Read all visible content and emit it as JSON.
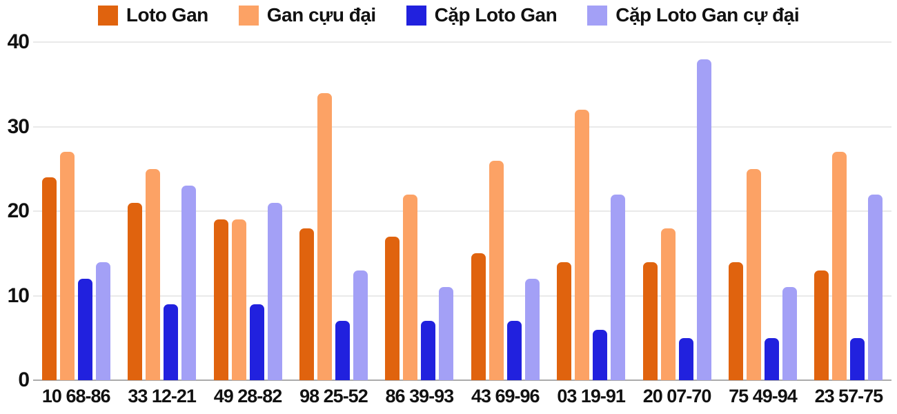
{
  "chart_data": {
    "type": "bar",
    "title": "",
    "xlabel": "",
    "ylabel": "",
    "categories": [
      "10 68-86",
      "33 12-21",
      "49 28-82",
      "98 25-52",
      "86 39-93",
      "43 69-96",
      "03 19-91",
      "20 07-70",
      "75 49-94",
      "23 57-75"
    ],
    "series": [
      {
        "name": "Loto Gan",
        "color": "#e0630e",
        "values": [
          24,
          21,
          19,
          18,
          17,
          15,
          14,
          14,
          14,
          13
        ]
      },
      {
        "name": "Gan cựu đại",
        "color": "#fca265",
        "values": [
          27,
          25,
          19,
          34,
          22,
          26,
          32,
          18,
          25,
          27
        ]
      },
      {
        "name": "Cặp Loto Gan",
        "color": "#2121de",
        "values": [
          12,
          9,
          9,
          7,
          7,
          7,
          6,
          5,
          5,
          5
        ]
      },
      {
        "name": "Cặp Loto Gan cự đại",
        "color": "#a3a0f6",
        "values": [
          14,
          23,
          21,
          13,
          11,
          12,
          22,
          38,
          11,
          22
        ]
      }
    ],
    "ylim": [
      0,
      40
    ],
    "yticks": [
      0,
      10,
      20,
      30,
      40
    ],
    "grid": true,
    "legend_position": "top",
    "colors": {
      "grid_line": "#e9e9e9",
      "axis_line": "#ababab",
      "text": "#111111",
      "background": "#ffffff"
    }
  }
}
